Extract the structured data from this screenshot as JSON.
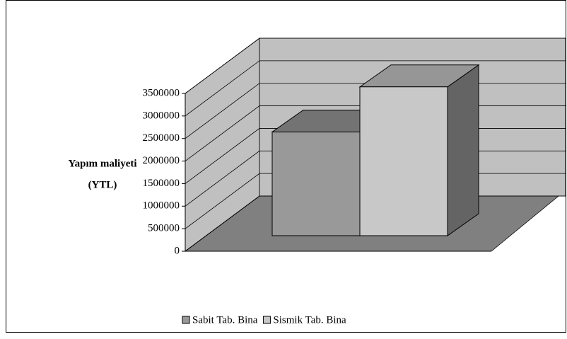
{
  "chart_data": {
    "type": "bar3d",
    "y_label": [
      "Yapım maliyeti",
      "(YTL)"
    ],
    "categories": [
      null
    ],
    "series": [
      {
        "name": "Sabit Tab. Bina",
        "color": "#999999",
        "values": [
          2300000
        ]
      },
      {
        "name": "Sismik Tab. Bina",
        "color": "#c8c8c8",
        "values": [
          3300000
        ]
      }
    ],
    "ylim": [
      0,
      3500000
    ],
    "yticks": [
      0,
      500000,
      1000000,
      1500000,
      2000000,
      2500000,
      3000000,
      3500000
    ],
    "grid": true,
    "legend": "bottom"
  }
}
